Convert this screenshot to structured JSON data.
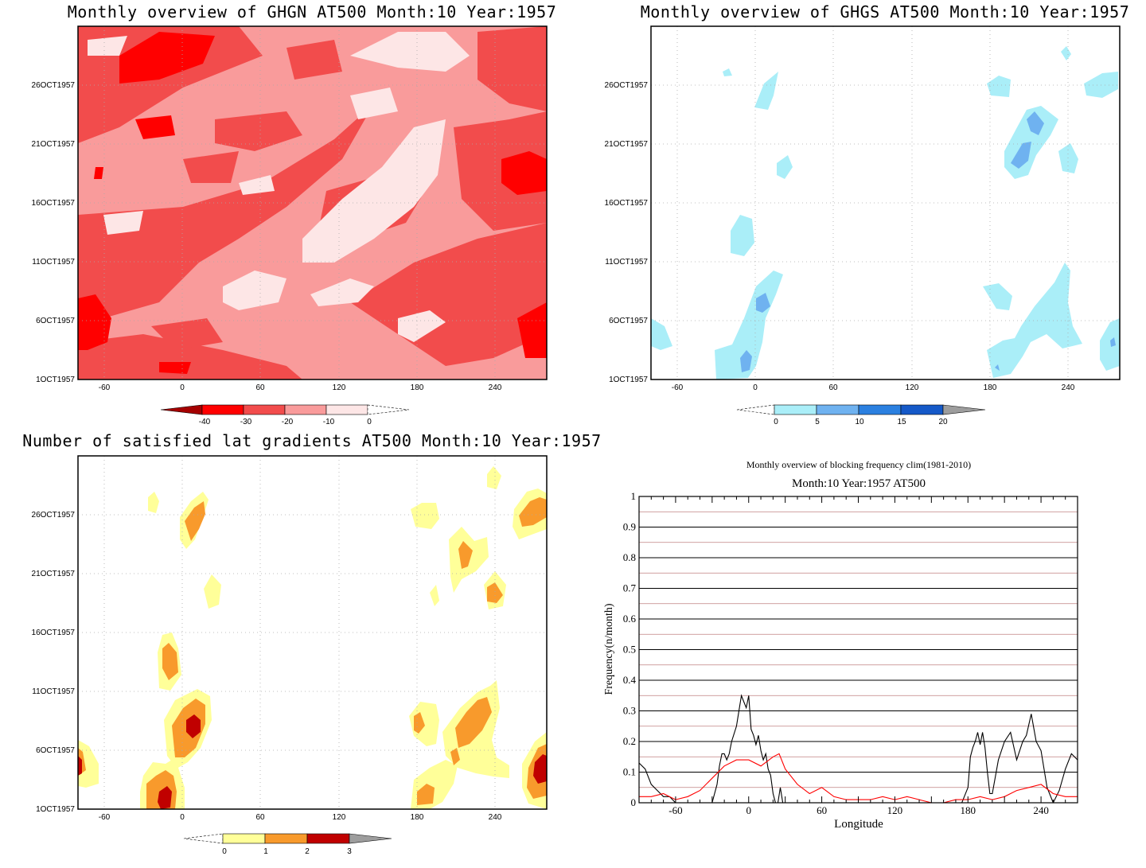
{
  "panels": [
    {
      "title": "Monthly overview of GHGN AT500 Month:10 Year:1957",
      "xticks": [
        "-60",
        "0",
        "60",
        "120",
        "180",
        "240"
      ],
      "yticks": [
        "26OCT1957",
        "21OCT1957",
        "16OCT1957",
        "11OCT1957",
        "6OCT1957",
        "1OCT1957"
      ],
      "colorbar": {
        "labels": [
          "-40",
          "-30",
          "-20",
          "-10",
          "0"
        ],
        "colors": [
          "#a50000",
          "#ff0000",
          "#f24c4c",
          "#f99b9b",
          "#fde6e6"
        ]
      }
    },
    {
      "title": "Monthly overview of GHGS AT500 Month:10 Year:1957",
      "xticks": [
        "-60",
        "0",
        "60",
        "120",
        "180",
        "240"
      ],
      "yticks": [
        "26OCT1957",
        "21OCT1957",
        "16OCT1957",
        "11OCT1957",
        "6OCT1957",
        "1OCT1957"
      ],
      "colorbar": {
        "labels": [
          "0",
          "5",
          "10",
          "15",
          "20"
        ],
        "colors": [
          "#aaeef8",
          "#6fb2f0",
          "#2b80e0",
          "#1559c8",
          "#9d9d9d"
        ]
      }
    },
    {
      "title": "Number of satisfied lat gradients AT500 Month:10 Year:1957",
      "xticks": [
        "-60",
        "0",
        "60",
        "120",
        "180",
        "240"
      ],
      "yticks": [
        "26OCT1957",
        "21OCT1957",
        "16OCT1957",
        "11OCT1957",
        "6OCT1957",
        "1OCT1957"
      ],
      "colorbar": {
        "labels": [
          "0",
          "1",
          "2",
          "3"
        ],
        "colors": [
          "#ffff99",
          "#f89a2c",
          "#c00000",
          "#9d9d9d"
        ]
      }
    }
  ],
  "chart_data": {
    "type": "line",
    "title": "Monthly overview of blocking frequency clim(1981-2010)",
    "subtitle": "Month:10 Year:1957  AT500",
    "xlabel": "Longitude",
    "ylabel": "Frequency(n/month)",
    "xlim": [
      -90,
      270
    ],
    "ylim": [
      0,
      1
    ],
    "xticks": [
      "-60",
      "0",
      "60",
      "120",
      "180",
      "240"
    ],
    "yticks": [
      "0",
      "0.1",
      "0.2",
      "0.3",
      "0.4",
      "0.5",
      "0.6",
      "0.7",
      "0.8",
      "0.9",
      "1"
    ],
    "series": [
      {
        "color": "#000000",
        "x": [
          -90,
          -85,
          -80,
          -75,
          -70,
          -65,
          -60,
          -57,
          -55,
          -50,
          -45,
          -40,
          -35,
          -30,
          -26,
          -24,
          -22,
          -20,
          -18,
          -16,
          -14,
          -10,
          -8,
          -6,
          -4,
          -2,
          0,
          2,
          4,
          6,
          8,
          10,
          12,
          14,
          16,
          18,
          20,
          22,
          24,
          26,
          28,
          30,
          32,
          34,
          36,
          40,
          50,
          60,
          80,
          100,
          120,
          140,
          160,
          170,
          175,
          180,
          182,
          184,
          186,
          188,
          190,
          192,
          194,
          196,
          198,
          200,
          205,
          210,
          215,
          220,
          225,
          228,
          232,
          236,
          240,
          245,
          250,
          255,
          260,
          265,
          270
        ],
        "y": [
          0.13,
          0.11,
          0.06,
          0.04,
          0.02,
          0.02,
          0.0,
          0.0,
          0.0,
          0.0,
          0.0,
          0.0,
          0.0,
          0.0,
          0.06,
          0.12,
          0.16,
          0.16,
          0.14,
          0.16,
          0.2,
          0.25,
          0.3,
          0.35,
          0.33,
          0.31,
          0.35,
          0.24,
          0.22,
          0.19,
          0.22,
          0.17,
          0.14,
          0.16,
          0.11,
          0.09,
          0.03,
          0.0,
          0.0,
          0.05,
          0.0,
          0.0,
          0.0,
          0.0,
          0.0,
          0.0,
          0.0,
          0.0,
          0.0,
          0.0,
          0.0,
          0.0,
          0.0,
          0.0,
          0.0,
          0.05,
          0.15,
          0.18,
          0.2,
          0.23,
          0.19,
          0.23,
          0.18,
          0.1,
          0.03,
          0.03,
          0.14,
          0.2,
          0.23,
          0.14,
          0.2,
          0.22,
          0.29,
          0.2,
          0.17,
          0.05,
          0.0,
          0.04,
          0.11,
          0.16,
          0.14
        ]
      },
      {
        "color": "#ff0000",
        "x": [
          -90,
          -80,
          -70,
          -60,
          -50,
          -40,
          -30,
          -20,
          -10,
          0,
          10,
          20,
          25,
          30,
          40,
          50,
          60,
          70,
          80,
          90,
          100,
          110,
          120,
          130,
          140,
          150,
          160,
          170,
          180,
          190,
          200,
          210,
          220,
          230,
          240,
          250,
          260,
          270
        ],
        "y": [
          0.02,
          0.02,
          0.03,
          0.01,
          0.02,
          0.04,
          0.08,
          0.12,
          0.14,
          0.14,
          0.12,
          0.15,
          0.16,
          0.11,
          0.06,
          0.03,
          0.05,
          0.02,
          0.01,
          0.01,
          0.01,
          0.02,
          0.01,
          0.02,
          0.01,
          0.0,
          0.0,
          0.01,
          0.01,
          0.02,
          0.01,
          0.02,
          0.04,
          0.05,
          0.06,
          0.03,
          0.02,
          0.02
        ]
      }
    ]
  }
}
